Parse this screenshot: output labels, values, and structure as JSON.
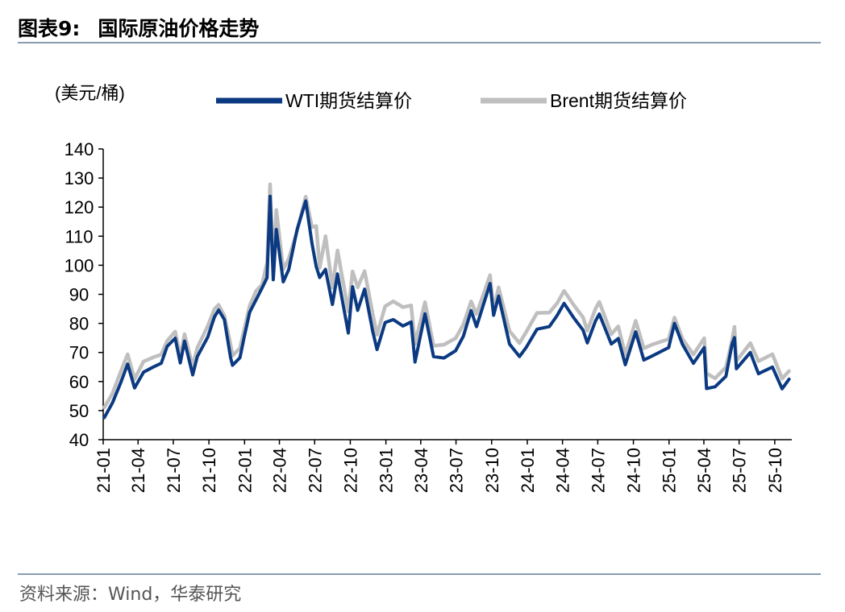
{
  "figure": {
    "number": "图表9:",
    "title": "国际原油价格走势",
    "source": "资料来源：Wind，华泰研究"
  },
  "chart_data": {
    "type": "line",
    "unit_label": "(美元/桶)",
    "xlabel": "",
    "ylabel": "",
    "ylim": [
      40,
      140
    ],
    "y_ticks": [
      40,
      50,
      60,
      70,
      80,
      90,
      100,
      110,
      120,
      130,
      140
    ],
    "x_tick_labels": [
      "21-01",
      "21-04",
      "21-07",
      "21-10",
      "22-01",
      "22-04",
      "22-07",
      "22-10",
      "23-01",
      "23-04",
      "23-07",
      "23-10",
      "24-01",
      "24-04",
      "24-07",
      "24-10",
      "25-01",
      "25-04",
      "25-07",
      "25-10"
    ],
    "x_range": [
      "2021-01",
      "2025-11"
    ],
    "legend_position": "top",
    "grid": false,
    "series": [
      {
        "name": "WTI期货结算价",
        "color": "#0b3a82",
        "points": [
          [
            "2021-01-04",
            47.6
          ],
          [
            "2021-01-25",
            52.7
          ],
          [
            "2021-02-15",
            59.5
          ],
          [
            "2021-03-05",
            66.0
          ],
          [
            "2021-03-23",
            57.8
          ],
          [
            "2021-04-15",
            63.2
          ],
          [
            "2021-05-10",
            65.0
          ],
          [
            "2021-05-31",
            66.3
          ],
          [
            "2021-06-15",
            72.1
          ],
          [
            "2021-07-06",
            74.9
          ],
          [
            "2021-07-19",
            66.4
          ],
          [
            "2021-07-30",
            73.9
          ],
          [
            "2021-08-20",
            62.3
          ],
          [
            "2021-09-01",
            68.6
          ],
          [
            "2021-09-28",
            75.3
          ],
          [
            "2021-10-15",
            82.2
          ],
          [
            "2021-10-26",
            84.6
          ],
          [
            "2021-11-10",
            81.3
          ],
          [
            "2021-11-26",
            68.2
          ],
          [
            "2021-12-01",
            65.6
          ],
          [
            "2021-12-20",
            68.2
          ],
          [
            "2021-12-31",
            75.2
          ],
          [
            "2022-01-14",
            83.8
          ],
          [
            "2022-01-31",
            88.2
          ],
          [
            "2022-02-15",
            92.1
          ],
          [
            "2022-02-28",
            95.7
          ],
          [
            "2022-03-08",
            123.7
          ],
          [
            "2022-03-16",
            95.0
          ],
          [
            "2022-03-24",
            112.3
          ],
          [
            "2022-04-11",
            94.3
          ],
          [
            "2022-04-25",
            98.5
          ],
          [
            "2022-05-17",
            112.4
          ],
          [
            "2022-06-08",
            122.1
          ],
          [
            "2022-06-24",
            107.6
          ],
          [
            "2022-07-05",
            99.5
          ],
          [
            "2022-07-14",
            95.8
          ],
          [
            "2022-07-29",
            98.6
          ],
          [
            "2022-08-16",
            86.5
          ],
          [
            "2022-08-29",
            97.0
          ],
          [
            "2022-09-26",
            76.7
          ],
          [
            "2022-10-07",
            92.6
          ],
          [
            "2022-10-20",
            84.5
          ],
          [
            "2022-11-07",
            91.8
          ],
          [
            "2022-11-28",
            77.2
          ],
          [
            "2022-12-09",
            71.0
          ],
          [
            "2022-12-30",
            80.3
          ],
          [
            "2023-01-20",
            81.3
          ],
          [
            "2023-02-14",
            79.1
          ],
          [
            "2023-03-07",
            80.5
          ],
          [
            "2023-03-17",
            66.7
          ],
          [
            "2023-04-12",
            83.3
          ],
          [
            "2023-05-04",
            68.6
          ],
          [
            "2023-05-31",
            68.1
          ],
          [
            "2023-06-30",
            70.6
          ],
          [
            "2023-07-20",
            75.6
          ],
          [
            "2023-08-09",
            84.4
          ],
          [
            "2023-08-23",
            78.9
          ],
          [
            "2023-09-27",
            93.7
          ],
          [
            "2023-10-06",
            82.8
          ],
          [
            "2023-10-19",
            89.4
          ],
          [
            "2023-11-16",
            72.9
          ],
          [
            "2023-12-12",
            68.6
          ],
          [
            "2023-12-29",
            71.7
          ],
          [
            "2024-01-26",
            78.0
          ],
          [
            "2024-02-27",
            78.9
          ],
          [
            "2024-03-18",
            82.7
          ],
          [
            "2024-04-05",
            86.9
          ],
          [
            "2024-04-30",
            81.9
          ],
          [
            "2024-05-24",
            77.7
          ],
          [
            "2024-06-04",
            73.3
          ],
          [
            "2024-06-25",
            80.8
          ],
          [
            "2024-07-05",
            83.2
          ],
          [
            "2024-08-05",
            72.9
          ],
          [
            "2024-08-23",
            74.8
          ],
          [
            "2024-09-10",
            65.8
          ],
          [
            "2024-10-07",
            77.1
          ],
          [
            "2024-10-28",
            67.4
          ],
          [
            "2024-11-20",
            68.9
          ],
          [
            "2024-12-31",
            71.7
          ],
          [
            "2025-01-15",
            80.0
          ],
          [
            "2025-02-05",
            72.7
          ],
          [
            "2025-03-05",
            66.3
          ],
          [
            "2025-04-02",
            71.7
          ],
          [
            "2025-04-08",
            57.6
          ],
          [
            "2025-04-30",
            58.2
          ],
          [
            "2025-05-28",
            61.8
          ],
          [
            "2025-06-13",
            72.9
          ],
          [
            "2025-06-19",
            75.1
          ],
          [
            "2025-06-24",
            64.4
          ],
          [
            "2025-07-30",
            70.0
          ],
          [
            "2025-08-20",
            62.7
          ],
          [
            "2025-09-25",
            65.0
          ],
          [
            "2025-10-20",
            57.5
          ],
          [
            "2025-11-07",
            60.8
          ]
        ]
      },
      {
        "name": "Brent期货结算价",
        "color": "#bfbfbf",
        "points": [
          [
            "2021-01-04",
            51.1
          ],
          [
            "2021-01-25",
            55.9
          ],
          [
            "2021-02-15",
            63.3
          ],
          [
            "2021-03-05",
            69.4
          ],
          [
            "2021-03-23",
            60.8
          ],
          [
            "2021-04-15",
            66.9
          ],
          [
            "2021-05-10",
            68.3
          ],
          [
            "2021-05-31",
            69.3
          ],
          [
            "2021-06-15",
            74.0
          ],
          [
            "2021-07-06",
            77.2
          ],
          [
            "2021-07-19",
            68.6
          ],
          [
            "2021-07-30",
            76.3
          ],
          [
            "2021-08-20",
            65.2
          ],
          [
            "2021-09-01",
            71.6
          ],
          [
            "2021-09-28",
            79.1
          ],
          [
            "2021-10-15",
            84.9
          ],
          [
            "2021-10-26",
            86.4
          ],
          [
            "2021-11-10",
            82.6
          ],
          [
            "2021-11-26",
            72.7
          ],
          [
            "2021-12-01",
            68.9
          ],
          [
            "2021-12-20",
            71.5
          ],
          [
            "2021-12-31",
            77.8
          ],
          [
            "2022-01-14",
            86.1
          ],
          [
            "2022-01-31",
            91.2
          ],
          [
            "2022-02-15",
            93.3
          ],
          [
            "2022-02-28",
            100.9
          ],
          [
            "2022-03-08",
            127.9
          ],
          [
            "2022-03-16",
            98.0
          ],
          [
            "2022-03-24",
            119.0
          ],
          [
            "2022-04-11",
            98.5
          ],
          [
            "2022-04-25",
            102.3
          ],
          [
            "2022-05-17",
            112.0
          ],
          [
            "2022-06-08",
            123.6
          ],
          [
            "2022-06-24",
            113.1
          ],
          [
            "2022-07-05",
            113.5
          ],
          [
            "2022-07-14",
            99.1
          ],
          [
            "2022-07-29",
            110.0
          ],
          [
            "2022-08-16",
            92.3
          ],
          [
            "2022-08-29",
            105.1
          ],
          [
            "2022-09-26",
            84.1
          ],
          [
            "2022-10-07",
            97.9
          ],
          [
            "2022-10-20",
            92.4
          ],
          [
            "2022-11-07",
            98.0
          ],
          [
            "2022-11-28",
            83.2
          ],
          [
            "2022-12-09",
            76.1
          ],
          [
            "2022-12-30",
            85.9
          ],
          [
            "2023-01-20",
            87.6
          ],
          [
            "2023-02-14",
            85.6
          ],
          [
            "2023-03-07",
            86.2
          ],
          [
            "2023-03-17",
            72.9
          ],
          [
            "2023-04-12",
            87.3
          ],
          [
            "2023-05-04",
            72.3
          ],
          [
            "2023-05-31",
            72.7
          ],
          [
            "2023-06-30",
            74.9
          ],
          [
            "2023-07-20",
            79.6
          ],
          [
            "2023-08-09",
            87.6
          ],
          [
            "2023-08-23",
            83.2
          ],
          [
            "2023-09-27",
            96.6
          ],
          [
            "2023-10-06",
            84.6
          ],
          [
            "2023-10-19",
            92.4
          ],
          [
            "2023-11-16",
            77.4
          ],
          [
            "2023-12-12",
            73.2
          ],
          [
            "2023-12-29",
            77.0
          ],
          [
            "2024-01-26",
            83.6
          ],
          [
            "2024-02-27",
            83.7
          ],
          [
            "2024-03-18",
            86.9
          ],
          [
            "2024-04-05",
            91.2
          ],
          [
            "2024-04-30",
            86.3
          ],
          [
            "2024-05-24",
            82.1
          ],
          [
            "2024-06-04",
            77.5
          ],
          [
            "2024-06-25",
            85.0
          ],
          [
            "2024-07-05",
            87.4
          ],
          [
            "2024-08-05",
            76.3
          ],
          [
            "2024-08-23",
            79.0
          ],
          [
            "2024-09-10",
            69.2
          ],
          [
            "2024-10-07",
            80.9
          ],
          [
            "2024-10-28",
            71.4
          ],
          [
            "2024-11-20",
            72.8
          ],
          [
            "2024-12-31",
            74.6
          ],
          [
            "2025-01-15",
            82.0
          ],
          [
            "2025-02-05",
            74.6
          ],
          [
            "2025-03-05",
            69.3
          ],
          [
            "2025-04-02",
            74.9
          ],
          [
            "2025-04-08",
            62.8
          ],
          [
            "2025-04-30",
            61.1
          ],
          [
            "2025-05-28",
            64.9
          ],
          [
            "2025-06-13",
            74.2
          ],
          [
            "2025-06-19",
            78.8
          ],
          [
            "2025-06-24",
            67.1
          ],
          [
            "2025-07-30",
            73.2
          ],
          [
            "2025-08-20",
            67.0
          ],
          [
            "2025-09-25",
            69.4
          ],
          [
            "2025-10-20",
            61.0
          ],
          [
            "2025-11-07",
            63.6
          ]
        ]
      }
    ]
  }
}
